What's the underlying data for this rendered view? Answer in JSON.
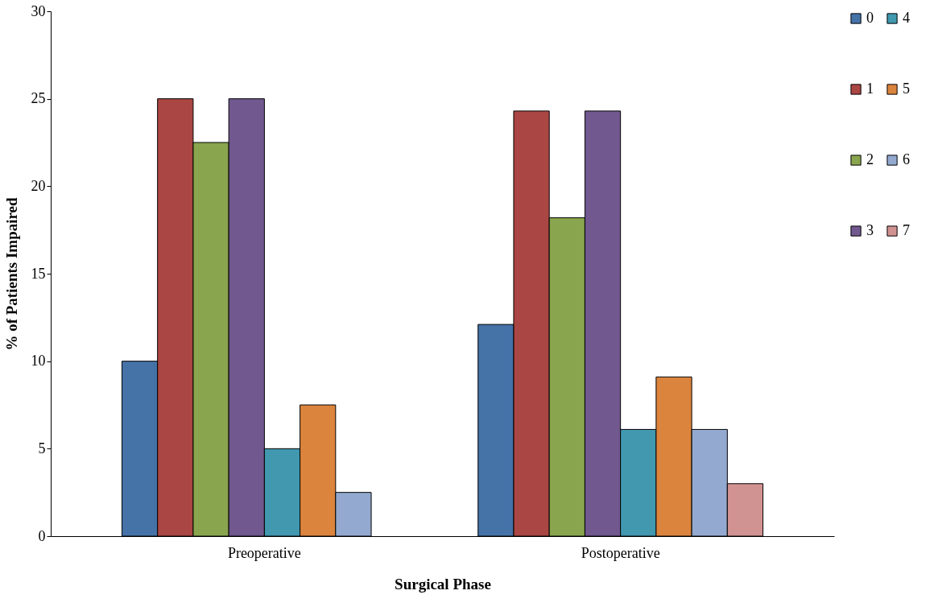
{
  "chart_data": {
    "type": "bar",
    "xlabel": "Surgical Phase",
    "ylabel": "% of Patients Impaired",
    "categories": [
      "Preoperative",
      "Postoperative"
    ],
    "series": [
      {
        "name": "0",
        "color": "#4572a7",
        "values": [
          10,
          12.1
        ]
      },
      {
        "name": "1",
        "color": "#aa4643",
        "values": [
          25,
          24.3
        ]
      },
      {
        "name": "2",
        "color": "#89a54e",
        "values": [
          22.5,
          18.2
        ]
      },
      {
        "name": "3",
        "color": "#71588f",
        "values": [
          25,
          24.3
        ]
      },
      {
        "name": "4",
        "color": "#4198af",
        "values": [
          5,
          6.1
        ]
      },
      {
        "name": "5",
        "color": "#db843d",
        "values": [
          7.5,
          9.1
        ]
      },
      {
        "name": "6",
        "color": "#93a9cf",
        "values": [
          2.5,
          6.1
        ]
      },
      {
        "name": "7",
        "color": "#d19392",
        "values": [
          null,
          3.0
        ]
      }
    ],
    "ylim": [
      0,
      30
    ],
    "yticks": [
      0,
      5,
      10,
      15,
      20,
      25,
      30
    ],
    "grid": false,
    "legend": "right"
  }
}
